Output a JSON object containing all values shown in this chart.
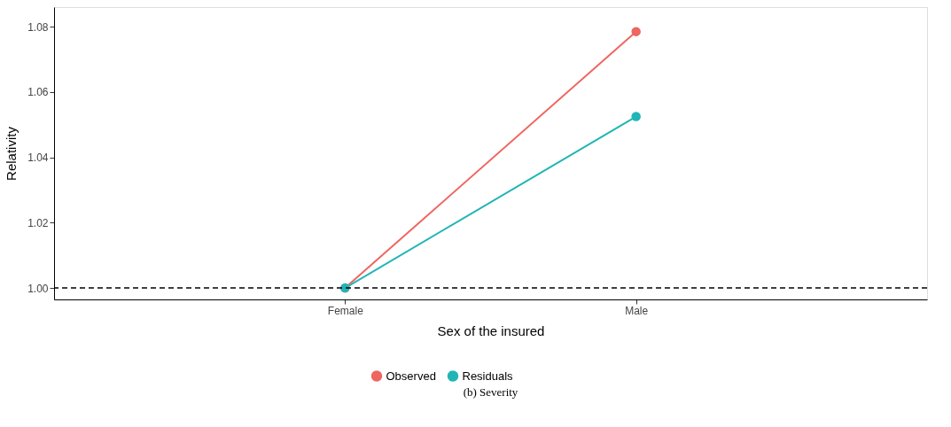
{
  "chart_data": {
    "type": "line",
    "xlabel": "Sex of the insured",
    "ylabel": "Relativity",
    "categories": [
      "Female",
      "Male"
    ],
    "series": [
      {
        "name": "Observed",
        "color": "#ee6660",
        "values": [
          1.0,
          1.0785
        ]
      },
      {
        "name": "Residuals",
        "color": "#22b5b5",
        "values": [
          1.0,
          1.0525
        ]
      }
    ],
    "ylim": [
      0.9965,
      1.086
    ],
    "yticks": [
      {
        "value": 1.0,
        "label": "1.00"
      },
      {
        "value": 1.02,
        "label": "1.02"
      },
      {
        "value": 1.04,
        "label": "1.04"
      },
      {
        "value": 1.06,
        "label": "1.06"
      },
      {
        "value": 1.08,
        "label": "1.08"
      }
    ],
    "ref_lines": [
      {
        "axis": "y",
        "value": 1.0,
        "line_style": "dashed",
        "color": "#000000"
      }
    ],
    "grid": false,
    "legend": "bottom",
    "marker": "circle",
    "line_style": "solid",
    "annotations": [
      "(b) Severity"
    ]
  }
}
